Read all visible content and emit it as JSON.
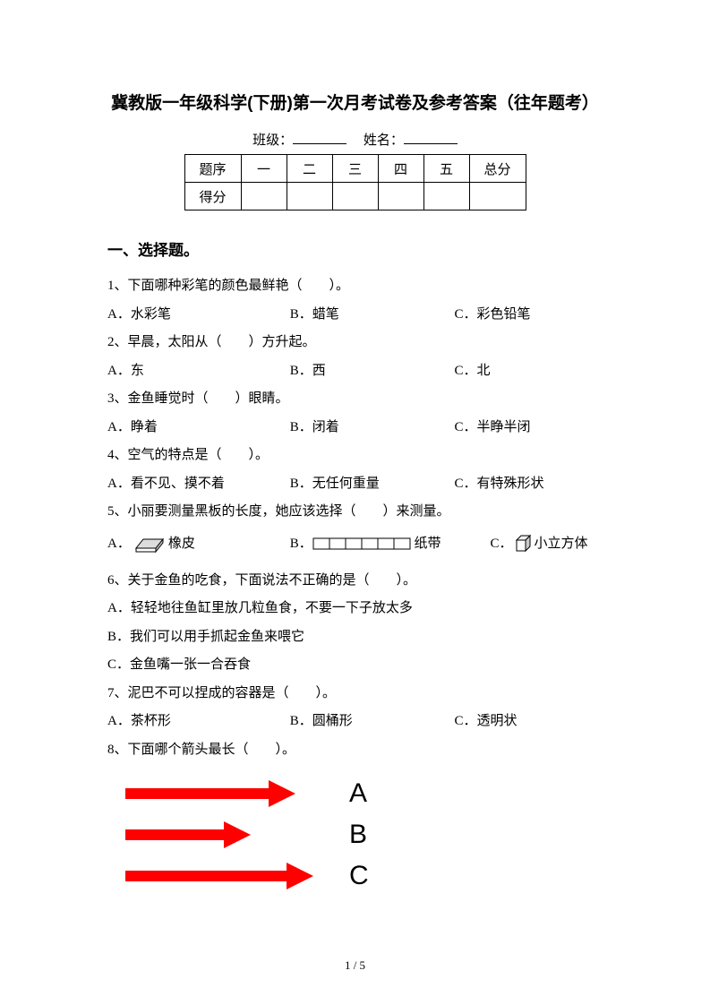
{
  "title": "冀教版一年级科学(下册)第一次月考试卷及参考答案（往年题考）",
  "info": {
    "class_label": "班级：",
    "name_label": "姓名："
  },
  "score_table": {
    "row1": [
      "题序",
      "一",
      "二",
      "三",
      "四",
      "五",
      "总分"
    ],
    "row2_label": "得分"
  },
  "section1": {
    "heading": "一、选择题。"
  },
  "q1": {
    "text": "1、下面哪种彩笔的颜色最鲜艳（　　）。",
    "a": "A．水彩笔",
    "b": "B．蜡笔",
    "c": "C．彩色铅笔"
  },
  "q2": {
    "text": "2、早晨，太阳从（　　）方升起。",
    "a": "A．东",
    "b": "B．西",
    "c": "C．北"
  },
  "q3": {
    "text": "3、金鱼睡觉时（　　）眼睛。",
    "a": "A．睁着",
    "b": "B．闭着",
    "c": "C．半睁半闭"
  },
  "q4": {
    "text": "4、空气的特点是（　　）。",
    "a": "A．看不见、摸不着",
    "b": "B．无任何重量",
    "c": "C．有特殊形状"
  },
  "q5": {
    "text": "5、小丽要测量黑板的长度，她应该选择（　　）来测量。",
    "a_prefix": "A．",
    "a_suffix": "橡皮",
    "b_prefix": "B．",
    "b_suffix": "纸带",
    "c_prefix": "C．",
    "c_suffix": "小立方体"
  },
  "q6": {
    "text": "6、关于金鱼的吃食，下面说法不正确的是（　　）。",
    "a": "A．轻轻地往鱼缸里放几粒鱼食，不要一下子放太多",
    "b": "B．我们可以用手抓起金鱼来喂它",
    "c": "C．金鱼嘴一张一合吞食"
  },
  "q7": {
    "text": "7、泥巴不可以捏成的容器是（　　）。",
    "a": "A．茶杯形",
    "b": "B．圆桶形",
    "c": "C．透明状"
  },
  "q8": {
    "text": "8、下面哪个箭头最长（　　）。",
    "labels": [
      "A",
      "B",
      "C"
    ],
    "arrow_color": "#ff0000",
    "shaft_h": 12,
    "head_w": 30,
    "head_h": 30,
    "arrows": [
      {
        "shaft_w": 160
      },
      {
        "shaft_w": 110
      },
      {
        "shaft_w": 180
      }
    ]
  },
  "page_num": "1 / 5"
}
